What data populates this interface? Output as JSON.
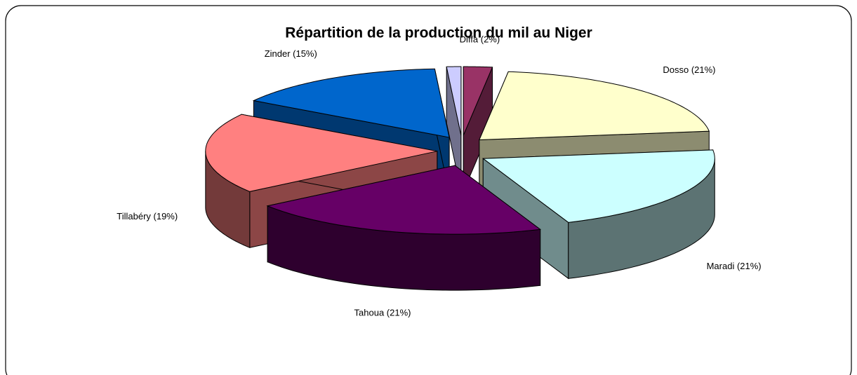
{
  "chart_data": {
    "type": "pie3d",
    "title": "Répartition de la production du mil au Niger",
    "values": [
      2,
      21,
      21,
      21,
      19,
      15,
      1
    ],
    "value_labels": [
      "Diffa (2%)",
      "Dosso (21%)",
      "Maradi (21%)",
      "Tahoua (21%)",
      "Tillabéry (19%)",
      "Zinder (15%)",
      null
    ],
    "colors": [
      "#993366",
      "#ffffcc",
      "#ccffff",
      "#660066",
      "#ff8080",
      "#0066cc",
      "#ccccff"
    ]
  }
}
